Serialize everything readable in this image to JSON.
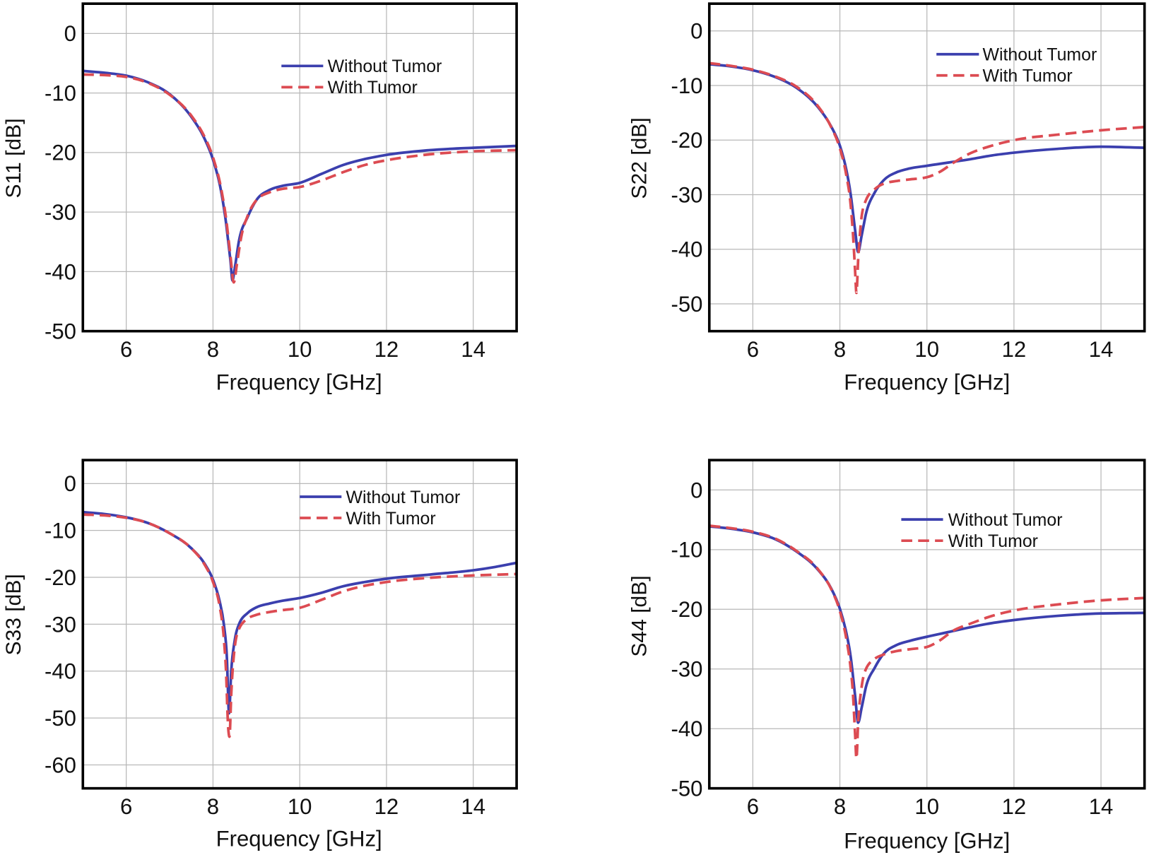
{
  "chart_data": [
    {
      "type": "line",
      "title": "",
      "xlabel": "Frequency [GHz]",
      "ylabel": "S11 [dB]",
      "xlim": [
        5,
        15
      ],
      "ylim": [
        -50,
        5
      ],
      "xticks": [
        6,
        8,
        10,
        12,
        14
      ],
      "xtick_labels": [
        "6",
        "8",
        "10",
        "12",
        "14"
      ],
      "yticks": [
        0,
        -10,
        -20,
        -30,
        -40,
        -50
      ],
      "ytick_labels": [
        "0",
        "-10",
        "-20",
        "-30",
        "-40",
        "-50"
      ],
      "grid": true,
      "legend_loc": "upper right",
      "series": [
        {
          "name": "Without Tumor",
          "color": "#3b3fae",
          "dashed": false,
          "x": [
            5,
            5.5,
            6,
            6.5,
            7,
            7.5,
            7.8,
            8,
            8.2,
            8.3,
            8.4,
            8.45,
            8.5,
            8.6,
            8.8,
            9,
            9.3,
            9.6,
            10,
            10.5,
            11,
            11.5,
            12,
            13,
            14,
            15
          ],
          "y": [
            -6.3,
            -6.6,
            -7.1,
            -8.2,
            -10.2,
            -14.0,
            -17.6,
            -21.2,
            -27.0,
            -31.8,
            -38.0,
            -41.5,
            -39.5,
            -34.8,
            -30.8,
            -28.0,
            -26.3,
            -25.6,
            -25.1,
            -23.6,
            -22.1,
            -21.1,
            -20.4,
            -19.6,
            -19.2,
            -18.9
          ]
        },
        {
          "name": "With Tumor",
          "color": "#dc4b52",
          "dashed": true,
          "x": [
            5,
            5.5,
            6,
            6.5,
            7,
            7.5,
            7.8,
            8,
            8.2,
            8.3,
            8.4,
            8.48,
            8.55,
            8.65,
            8.8,
            9,
            9.3,
            9.6,
            10,
            10.5,
            11,
            11.5,
            12,
            13,
            14,
            15
          ],
          "y": [
            -6.9,
            -7.0,
            -7.3,
            -8.3,
            -10.3,
            -13.8,
            -17.3,
            -20.8,
            -26.5,
            -31.0,
            -37.2,
            -41.8,
            -38.8,
            -34.2,
            -30.6,
            -28.0,
            -26.7,
            -26.1,
            -25.8,
            -24.7,
            -23.3,
            -22.1,
            -21.3,
            -20.3,
            -19.8,
            -19.6
          ]
        }
      ]
    },
    {
      "type": "line",
      "title": "",
      "xlabel": "Frequency [GHz]",
      "ylabel": "S22 [dB]",
      "xlim": [
        5,
        15
      ],
      "ylim": [
        -55,
        5
      ],
      "xticks": [
        6,
        8,
        10,
        12,
        14
      ],
      "xtick_labels": [
        "6",
        "8",
        "10",
        "12",
        "14"
      ],
      "yticks": [
        0,
        -10,
        -20,
        -30,
        -40,
        -50
      ],
      "ytick_labels": [
        "0",
        "-10",
        "-20",
        "-30",
        "-40",
        "-50"
      ],
      "grid": true,
      "legend_loc": "upper right",
      "series": [
        {
          "name": "Without Tumor",
          "color": "#3b3fae",
          "dashed": false,
          "x": [
            5,
            5.5,
            6,
            6.5,
            7,
            7.5,
            7.8,
            8,
            8.15,
            8.25,
            8.35,
            8.42,
            8.5,
            8.6,
            8.8,
            9,
            9.3,
            9.6,
            10,
            10.5,
            11,
            11.5,
            12,
            13,
            14,
            15
          ],
          "y": [
            -6.1,
            -6.5,
            -7.2,
            -8.4,
            -10.4,
            -14.0,
            -17.5,
            -21.0,
            -25.5,
            -30.0,
            -36.5,
            -40.5,
            -37.5,
            -33.5,
            -29.6,
            -27.4,
            -25.9,
            -25.2,
            -24.7,
            -24.1,
            -23.5,
            -22.8,
            -22.3,
            -21.6,
            -21.2,
            -21.4
          ]
        },
        {
          "name": "With Tumor",
          "color": "#dc4b52",
          "dashed": true,
          "x": [
            5,
            5.5,
            6,
            6.5,
            7,
            7.5,
            7.8,
            8,
            8.15,
            8.25,
            8.3,
            8.35,
            8.38,
            8.42,
            8.5,
            8.6,
            8.8,
            9,
            9.3,
            9.6,
            10,
            10.3,
            10.6,
            11,
            11.5,
            12,
            13,
            14,
            15
          ],
          "y": [
            -5.9,
            -6.4,
            -7.1,
            -8.3,
            -10.2,
            -13.8,
            -17.6,
            -21.5,
            -26.5,
            -32.0,
            -37.0,
            -44.0,
            -48.0,
            -42.0,
            -34.0,
            -31.0,
            -29.0,
            -28.0,
            -27.5,
            -27.2,
            -26.8,
            -25.8,
            -24.2,
            -22.4,
            -21.0,
            -20.0,
            -19.0,
            -18.2,
            -17.6
          ]
        }
      ]
    },
    {
      "type": "line",
      "title": "",
      "xlabel": "Frequency [GHz]",
      "ylabel": "S33 [dB]",
      "xlim": [
        5,
        15
      ],
      "ylim": [
        -65,
        5
      ],
      "xticks": [
        6,
        8,
        10,
        12,
        14
      ],
      "xtick_labels": [
        "6",
        "8",
        "10",
        "12",
        "14"
      ],
      "yticks": [
        0,
        -10,
        -20,
        -30,
        -40,
        -50,
        -60
      ],
      "ytick_labels": [
        "0",
        "-10",
        "-20",
        "-30",
        "-40",
        "-50",
        "-60"
      ],
      "grid": true,
      "legend_loc": "upper right",
      "series": [
        {
          "name": "Without Tumor",
          "color": "#3b3fae",
          "dashed": false,
          "x": [
            5,
            5.5,
            6,
            6.5,
            7,
            7.5,
            7.8,
            8,
            8.15,
            8.25,
            8.32,
            8.37,
            8.42,
            8.5,
            8.6,
            8.8,
            9,
            9.3,
            9.6,
            10,
            10.5,
            11,
            11.5,
            12,
            13,
            14,
            14.5,
            15
          ],
          "y": [
            -6.1,
            -6.5,
            -7.2,
            -8.4,
            -10.6,
            -13.8,
            -17.0,
            -20.5,
            -25.0,
            -30.0,
            -37.0,
            -49.0,
            -40.0,
            -33.5,
            -30.0,
            -27.6,
            -26.4,
            -25.6,
            -25.0,
            -24.4,
            -23.3,
            -21.9,
            -21.0,
            -20.3,
            -19.4,
            -18.5,
            -17.8,
            -16.9
          ]
        },
        {
          "name": "With Tumor",
          "color": "#dc4b52",
          "dashed": true,
          "x": [
            5,
            5.5,
            6,
            6.5,
            7,
            7.5,
            7.8,
            8,
            8.15,
            8.25,
            8.3,
            8.35,
            8.38,
            8.42,
            8.5,
            8.6,
            8.8,
            9,
            9.3,
            9.6,
            10,
            10.5,
            11,
            11.5,
            12,
            13,
            14,
            15
          ],
          "y": [
            -6.6,
            -6.8,
            -7.3,
            -8.4,
            -10.6,
            -13.8,
            -17.2,
            -21.0,
            -26.0,
            -33.0,
            -40.0,
            -52.0,
            -54.0,
            -45.0,
            -35.0,
            -31.0,
            -28.8,
            -28.0,
            -27.4,
            -27.0,
            -26.5,
            -24.8,
            -23.0,
            -21.8,
            -21.0,
            -20.1,
            -19.6,
            -19.3
          ]
        }
      ]
    },
    {
      "type": "line",
      "title": "",
      "xlabel": "Frequency [GHz]",
      "ylabel": "S44 [dB]",
      "xlim": [
        5,
        15
      ],
      "ylim": [
        -50,
        5
      ],
      "xticks": [
        6,
        8,
        10,
        12,
        14
      ],
      "xtick_labels": [
        "6",
        "8",
        "10",
        "12",
        "14"
      ],
      "yticks": [
        0,
        -10,
        -20,
        -30,
        -40,
        -50
      ],
      "ytick_labels": [
        "0",
        "-10",
        "-20",
        "-30",
        "-40",
        "-50"
      ],
      "grid": true,
      "legend_loc": "upper right",
      "series": [
        {
          "name": "Without Tumor",
          "color": "#3b3fae",
          "dashed": false,
          "x": [
            5,
            5.5,
            6,
            6.5,
            7,
            7.5,
            7.8,
            8,
            8.15,
            8.25,
            8.35,
            8.42,
            8.5,
            8.6,
            8.8,
            9,
            9.3,
            9.6,
            10,
            10.5,
            11,
            11.5,
            12,
            13,
            14,
            15
          ],
          "y": [
            -6.1,
            -6.5,
            -7.1,
            -8.2,
            -10.3,
            -13.4,
            -16.5,
            -19.9,
            -24.0,
            -28.0,
            -34.5,
            -39.0,
            -36.5,
            -33.0,
            -29.8,
            -27.5,
            -26.0,
            -25.3,
            -24.6,
            -23.8,
            -23.0,
            -22.3,
            -21.8,
            -21.1,
            -20.7,
            -20.6
          ]
        },
        {
          "name": "With Tumor",
          "color": "#dc4b52",
          "dashed": true,
          "x": [
            5,
            5.5,
            6,
            6.5,
            7,
            7.5,
            7.8,
            8,
            8.15,
            8.25,
            8.3,
            8.35,
            8.38,
            8.42,
            8.5,
            8.6,
            8.8,
            9,
            9.3,
            9.6,
            10,
            10.3,
            10.6,
            11,
            11.5,
            12,
            13,
            14,
            15
          ],
          "y": [
            -6.0,
            -6.4,
            -7.0,
            -8.1,
            -10.2,
            -13.3,
            -16.6,
            -20.3,
            -25.0,
            -30.0,
            -34.0,
            -41.0,
            -45.0,
            -39.0,
            -33.0,
            -30.0,
            -28.3,
            -27.6,
            -27.0,
            -26.7,
            -26.3,
            -25.2,
            -23.6,
            -22.4,
            -21.1,
            -20.2,
            -19.2,
            -18.5,
            -18.1
          ]
        }
      ]
    }
  ]
}
